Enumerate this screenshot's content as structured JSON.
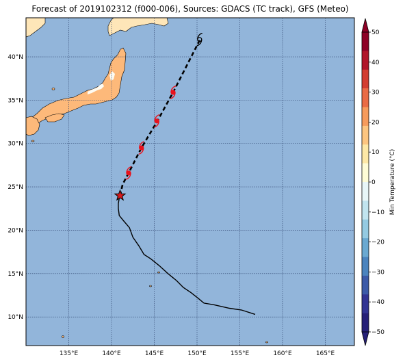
{
  "title": "Forecast of 2019102312 (f000-006), Sources: GDACS (TC track), GFS (Meteo)",
  "map": {
    "lon_range": [
      130,
      168.4
    ],
    "lat_range": [
      6.7,
      44.5
    ],
    "lon_ticks": [
      {
        "value": 135,
        "label": "135°E"
      },
      {
        "value": 140,
        "label": "140°E"
      },
      {
        "value": 145,
        "label": "145°E"
      },
      {
        "value": 150,
        "label": "150°E"
      },
      {
        "value": 155,
        "label": "155°E"
      },
      {
        "value": 160,
        "label": "160°E"
      },
      {
        "value": 165,
        "label": "165°E"
      }
    ],
    "lat_ticks": [
      {
        "value": 10,
        "label": "10°N"
      },
      {
        "value": 15,
        "label": "15°N"
      },
      {
        "value": 20,
        "label": "20°N"
      },
      {
        "value": 25,
        "label": "25°N"
      },
      {
        "value": 30,
        "label": "30°N"
      },
      {
        "value": 35,
        "label": "35°N"
      },
      {
        "value": 40,
        "label": "40°N"
      }
    ],
    "ocean_color": "#92b5da",
    "past_track": [
      [
        156.8,
        10.3
      ],
      [
        155.2,
        10.8
      ],
      [
        153.8,
        11.0
      ],
      [
        152.0,
        11.4
      ],
      [
        150.8,
        11.6
      ],
      [
        150.2,
        12.1
      ],
      [
        149.3,
        12.8
      ],
      [
        148.4,
        13.4
      ],
      [
        147.6,
        14.2
      ],
      [
        146.6,
        15.0
      ],
      [
        145.6,
        15.9
      ],
      [
        144.6,
        16.7
      ],
      [
        143.8,
        17.2
      ],
      [
        143.2,
        18.2
      ],
      [
        142.5,
        19.2
      ],
      [
        142.1,
        20.3
      ],
      [
        141.4,
        21.1
      ],
      [
        140.9,
        21.7
      ],
      [
        140.8,
        22.5
      ],
      [
        140.8,
        23.1
      ],
      [
        140.9,
        23.7
      ],
      [
        141.0,
        24.0
      ]
    ],
    "forecast_track": [
      [
        141.0,
        24.0
      ],
      [
        141.3,
        25.3
      ],
      [
        142.0,
        26.6
      ],
      [
        143.5,
        29.5
      ],
      [
        145.3,
        32.5
      ],
      [
        147.2,
        35.9
      ],
      [
        150.3,
        41.9
      ]
    ],
    "current_position": [
      141.0,
      24.0
    ],
    "forecast_symbols": [
      {
        "lon": 142.0,
        "lat": 26.6,
        "color": "#e8121c"
      },
      {
        "lon": 143.5,
        "lat": 29.5,
        "color": "#e8121c"
      },
      {
        "lon": 145.3,
        "lat": 32.6,
        "color": "#e8121c"
      },
      {
        "lon": 147.2,
        "lat": 35.9,
        "color": "#e8121c"
      },
      {
        "lon": 150.3,
        "lat": 42.0,
        "color": "#000000"
      }
    ]
  },
  "colorbar": {
    "label": "Min Temperature (°C)",
    "ticks": [
      "50",
      "40",
      "30",
      "20",
      "10",
      "0",
      "−10",
      "−20",
      "−30",
      "−40",
      "−50"
    ],
    "colors_top_to_bottom": [
      "#8e0126",
      "#b1152a",
      "#d33d30",
      "#ea6b45",
      "#f69b5c",
      "#fcc580",
      "#fde8a6",
      "#fefcd6",
      "#e8f6f8",
      "#c1e4ef",
      "#94cae2",
      "#6aa9d1",
      "#4b84be",
      "#3c5aa8",
      "#323493",
      "#262078"
    ]
  }
}
